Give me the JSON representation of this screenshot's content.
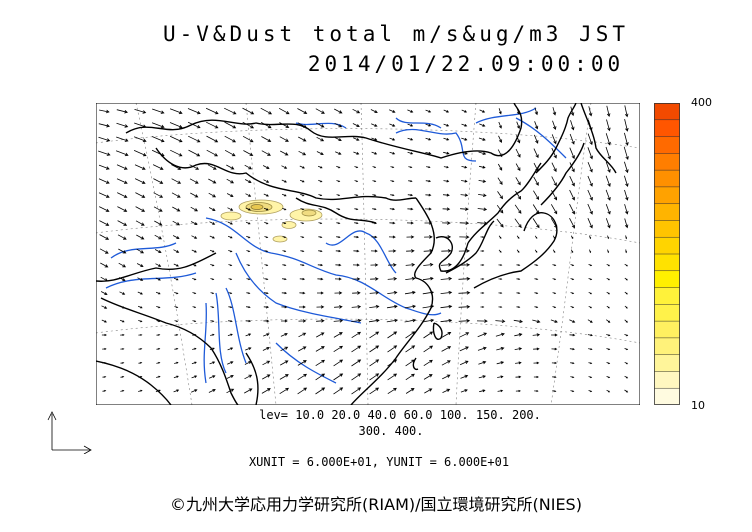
{
  "title": {
    "line1": "U-V&Dust total m/s&ug/m3 JST",
    "line2": "2014/01/22.09:00:00"
  },
  "colorbar": {
    "max_label": "400",
    "min_label": "10",
    "colors": [
      "#fffbe0",
      "#fff7c0",
      "#fff59a",
      "#fff27a",
      "#fff060",
      "#fff24a",
      "#fff23a",
      "#fff000",
      "#ffe200",
      "#ffd400",
      "#ffc400",
      "#ffb400",
      "#ffa200",
      "#ff9000",
      "#ff7e00",
      "#ff6a00",
      "#ff5600",
      "#f24a00"
    ]
  },
  "levels": {
    "line1": "lev= 10.0 20.0 40.0 60.0 100. 150. 200.",
    "line2": "300. 400."
  },
  "units_text": "XUNIT = 6.000E+01, YUNIT = 6.000E+01",
  "credit": "©九州大学応用力学研究所(RIAM)/国立環境研究所(NIES)",
  "map": {
    "coast_color": "#000000",
    "river_color": "#1e5ad8",
    "dust_fill_color": "#fff4a8",
    "dust_core_color": "#e8d060",
    "grid_color": "#808080"
  }
}
